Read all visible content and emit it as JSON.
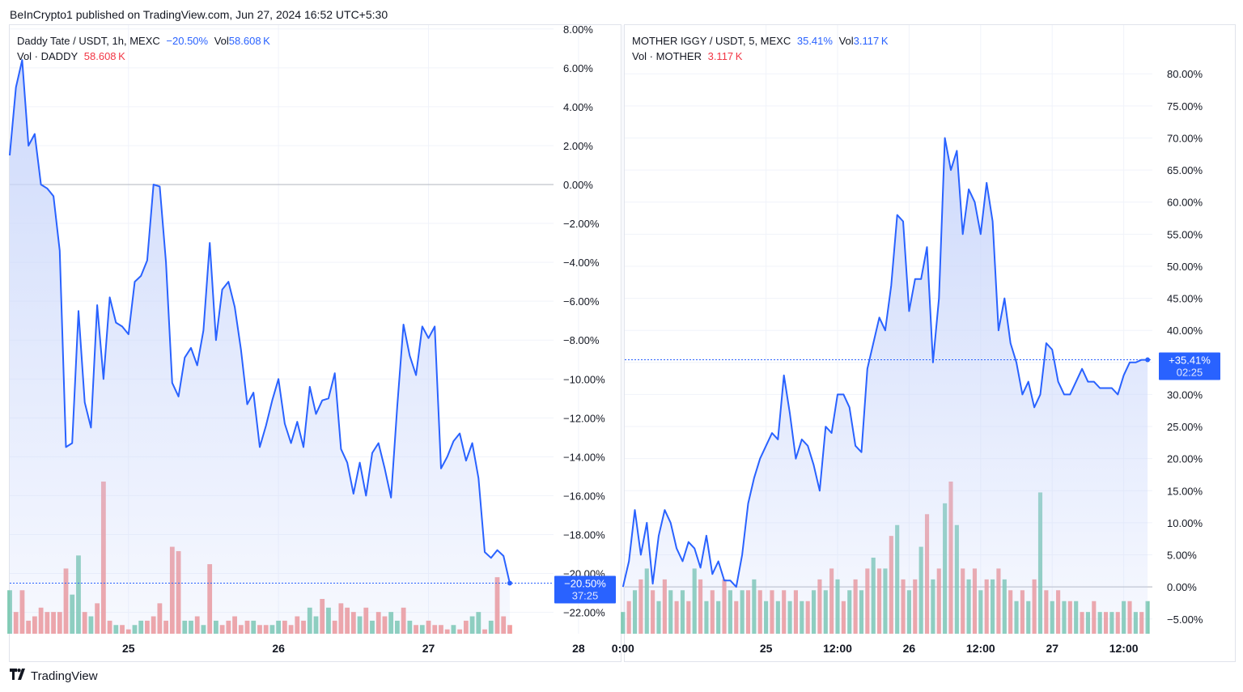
{
  "header": {
    "published": "BeInCrypto1 published on TradingView.com, Jun 27, 2024 16:52 UTC+5:30"
  },
  "footer": {
    "logo_icon": "tradingview-logo-icon",
    "brand": "TradingView"
  },
  "colors": {
    "line": "#2962ff",
    "area_top": "#c9d6fb",
    "up_vol": "#6cc3a8",
    "down_vol": "#f08b8b",
    "badge": "#2962ff",
    "grid": "#f0f3fa",
    "zero": "#b2b5be"
  },
  "left": {
    "symbol": "Daddy Tate / USDT, 1h, MEXC",
    "change": "−20.50%",
    "vol_label": "Vol",
    "vol_value": "58.608 K",
    "vol_series_label": "Vol · DADDY",
    "vol_series_value": "58.608 K",
    "badge_value": "−20.50%",
    "badge_timer": "37:25"
  },
  "right": {
    "symbol": "MOTHER IGGY / USDT, 5, MEXC",
    "change": "35.41%",
    "vol_label": "Vol",
    "vol_value": "3.117 K",
    "vol_series_label": "Vol · MOTHER",
    "vol_series_value": "3.117 K",
    "badge_value": "+35.41%",
    "badge_timer": "02:25"
  },
  "chart_data": [
    {
      "type": "area",
      "title": "Daddy Tate / USDT, 1h, MEXC",
      "y_unit": "%",
      "y_ticks": [
        "8.00%",
        "6.00%",
        "4.00%",
        "2.00%",
        "0.00%",
        "−2.00%",
        "−4.00%",
        "−6.00%",
        "−8.00%",
        "−10.00%",
        "−12.00%",
        "−14.00%",
        "−16.00%",
        "−18.00%",
        "−20.00%",
        "−22.00%"
      ],
      "y_tick_values": [
        8,
        6,
        4,
        2,
        0,
        -2,
        -4,
        -6,
        -8,
        -10,
        -12,
        -14,
        -16,
        -18,
        -20,
        -22
      ],
      "ylim": [
        -23.1,
        8.2
      ],
      "x_ticks": [
        "25",
        "26",
        "27",
        "28"
      ],
      "x_tick_values": [
        16,
        40,
        64,
        88
      ],
      "xlim": [
        -3,
        84
      ],
      "series": [
        {
          "x": [
            -3,
            -2,
            -1,
            0,
            1,
            2,
            3,
            4,
            5,
            6,
            7,
            8,
            9,
            10,
            11,
            12,
            13,
            14,
            15,
            16,
            17,
            18,
            19,
            20,
            21,
            22,
            23,
            24,
            25,
            26,
            27,
            28,
            29,
            30,
            31,
            32,
            33,
            34,
            35,
            36,
            37,
            38,
            39,
            40,
            41,
            42,
            43,
            44,
            45,
            46,
            47,
            48,
            49,
            50,
            51,
            52,
            53,
            54,
            55,
            56,
            57,
            58,
            59,
            60,
            61,
            62,
            63,
            64,
            65,
            66,
            67,
            68,
            69,
            70,
            71,
            72,
            73,
            74,
            75,
            76,
            77
          ],
          "y": [
            1.5,
            5,
            6.4,
            2,
            2.6,
            0,
            -0.2,
            -0.6,
            -3.4,
            -13.5,
            -13.3,
            -6.5,
            -11.2,
            -12.5,
            -6.2,
            -10,
            -5.8,
            -7.1,
            -7.3,
            -7.7,
            -5,
            -4.7,
            -3.9,
            0,
            -0.1,
            -4,
            -10.2,
            -10.9,
            -8.9,
            -8.4,
            -9.3,
            -7.5,
            -3,
            -8,
            -5.4,
            -5,
            -6.3,
            -8.5,
            -11.3,
            -10.7,
            -13.5,
            -12.4,
            -11.1,
            -10,
            -12.3,
            -13.3,
            -12.2,
            -13.5,
            -10.4,
            -11.8,
            -11.1,
            -11,
            -9.7,
            -13.6,
            -14.3,
            -15.9,
            -14.3,
            -16,
            -13.8,
            -13.3,
            -14.6,
            -16.1,
            -11.4,
            -7.2,
            -8.8,
            -9.8,
            -7.3,
            -7.9,
            -7.3,
            -14.6,
            -14,
            -13.2,
            -12.8,
            -14.2,
            -13.3,
            -15.1,
            -18.9,
            -19.2,
            -18.8,
            -19.1,
            -20.5
          ],
          "volume": [
            1.0,
            0.5,
            1.0,
            0.3,
            0.4,
            0.6,
            0.5,
            0.5,
            0.5,
            1.5,
            0.9,
            1.8,
            0.5,
            0.4,
            0.7,
            3.5,
            0.3,
            0.2,
            0.2,
            0.1,
            0.2,
            0.3,
            0.3,
            0.4,
            0.7,
            0.3,
            2.0,
            1.9,
            0.3,
            0.3,
            0.4,
            0.2,
            1.6,
            0.3,
            0.2,
            0.3,
            0.4,
            0.2,
            0.3,
            0.3,
            0.2,
            0.2,
            0.2,
            0.3,
            0.3,
            0.2,
            0.4,
            0.3,
            0.6,
            0.4,
            0.8,
            0.6,
            0.3,
            0.7,
            0.6,
            0.5,
            0.4,
            0.6,
            0.3,
            0.5,
            0.4,
            0.5,
            0.3,
            0.6,
            0.3,
            0.2,
            0.2,
            0.3,
            0.2,
            0.2,
            0.1,
            0.2,
            0.1,
            0.3,
            0.4,
            0.5,
            0.1,
            0.3,
            1.3,
            0.4,
            0.2
          ],
          "volume_up": [
            true,
            false,
            false,
            false,
            false,
            false,
            false,
            false,
            false,
            false,
            true,
            true,
            false,
            true,
            false,
            false,
            false,
            true,
            false,
            false,
            true,
            true,
            false,
            false,
            false,
            false,
            false,
            false,
            true,
            true,
            false,
            true,
            false,
            true,
            false,
            false,
            false,
            false,
            false,
            true,
            false,
            false,
            true,
            true,
            false,
            false,
            false,
            false,
            true,
            true,
            false,
            true,
            false,
            false,
            false,
            false,
            true,
            false,
            true,
            false,
            false,
            true,
            true,
            false,
            true,
            false,
            true,
            false,
            false,
            false,
            false,
            true,
            false,
            false,
            true,
            true,
            false,
            true,
            false,
            false,
            false
          ]
        }
      ],
      "last_value": -20.5
    },
    {
      "type": "area",
      "title": "MOTHER IGGY / USDT, 5, MEXC",
      "y_unit": "%",
      "y_ticks": [
        "80.00%",
        "75.00%",
        "70.00%",
        "65.00%",
        "60.00%",
        "55.00%",
        "50.00%",
        "45.00%",
        "40.00%",
        "35.00%",
        "30.00%",
        "25.00%",
        "20.00%",
        "15.00%",
        "10.00%",
        "5.00%",
        "0.00%",
        "−5.00%"
      ],
      "y_tick_values": [
        80,
        75,
        70,
        65,
        60,
        55,
        50,
        45,
        40,
        35,
        30,
        25,
        20,
        15,
        10,
        5,
        0,
        -5
      ],
      "ylim": [
        -7.3,
        87.6
      ],
      "x_ticks": [
        "0:00",
        "25",
        "12:00",
        "26",
        "12:00",
        "27",
        "12:00"
      ],
      "x_tick_values": [
        0,
        24,
        36,
        48,
        60,
        72,
        84
      ],
      "xlim": [
        0.3,
        88.8
      ],
      "series": [
        {
          "x": [
            0,
            1,
            2,
            3,
            4,
            5,
            6,
            7,
            8,
            9,
            10,
            11,
            12,
            13,
            14,
            15,
            16,
            17,
            18,
            19,
            20,
            21,
            22,
            23,
            24,
            25,
            26,
            27,
            28,
            29,
            30,
            31,
            32,
            33,
            34,
            35,
            36,
            37,
            38,
            39,
            40,
            41,
            42,
            43,
            44,
            45,
            46,
            47,
            48,
            49,
            50,
            51,
            52,
            53,
            54,
            55,
            56,
            57,
            58,
            59,
            60,
            61,
            62,
            63,
            64,
            65,
            66,
            67,
            68,
            69,
            70,
            71,
            72,
            73,
            74,
            75,
            76,
            77,
            78,
            79,
            80,
            81,
            82,
            83,
            84,
            85,
            86,
            87,
            88
          ],
          "y": [
            0,
            4,
            12,
            5,
            10,
            0.5,
            8,
            12,
            10,
            6,
            4,
            7,
            6,
            3,
            8,
            2,
            4,
            1,
            1,
            0,
            5,
            13,
            17,
            20,
            22,
            24,
            23,
            33,
            27,
            20,
            23,
            22,
            19,
            15,
            25,
            24,
            30,
            30,
            28,
            22,
            21,
            34,
            38,
            42,
            40,
            47,
            58,
            57,
            43,
            48,
            48,
            53,
            35,
            45,
            70,
            65,
            68,
            55,
            62,
            60,
            55,
            63,
            57,
            40,
            45,
            38,
            35,
            30,
            32,
            28,
            30,
            38,
            37,
            32,
            30,
            30,
            32,
            34,
            32,
            32,
            31,
            31,
            31,
            30,
            33,
            35,
            35,
            35.4,
            35.4
          ],
          "volume": [
            0.2,
            0.3,
            0.4,
            0.5,
            0.6,
            0.4,
            0.3,
            0.5,
            0.4,
            0.3,
            0.4,
            0.3,
            0.6,
            0.5,
            0.3,
            0.4,
            0.3,
            0.5,
            0.4,
            0.3,
            0.4,
            0.4,
            0.5,
            0.4,
            0.3,
            0.4,
            0.3,
            0.4,
            0.3,
            0.4,
            0.3,
            0.3,
            0.4,
            0.5,
            0.4,
            0.6,
            0.5,
            0.3,
            0.4,
            0.5,
            0.4,
            0.6,
            0.7,
            0.6,
            0.6,
            0.9,
            1.0,
            0.5,
            0.4,
            0.5,
            0.8,
            1.1,
            0.5,
            0.6,
            1.2,
            1.4,
            1.0,
            0.6,
            0.5,
            0.6,
            0.4,
            0.5,
            0.5,
            0.6,
            0.5,
            0.4,
            0.3,
            0.4,
            0.3,
            0.5,
            1.3,
            0.4,
            0.3,
            0.4,
            0.3,
            0.3,
            0.3,
            0.2,
            0.2,
            0.3,
            0.2,
            0.2,
            0.2,
            0.2,
            0.3,
            0.3,
            0.2,
            0.2,
            0.3
          ],
          "volume_up": [
            true,
            false,
            true,
            false,
            true,
            false,
            true,
            false,
            true,
            false,
            true,
            false,
            true,
            false,
            true,
            false,
            true,
            false,
            true,
            false,
            true,
            false,
            true,
            false,
            true,
            false,
            true,
            false,
            true,
            false,
            true,
            false,
            true,
            false,
            true,
            false,
            true,
            false,
            true,
            false,
            true,
            false,
            true,
            false,
            true,
            false,
            true,
            false,
            true,
            false,
            true,
            false,
            true,
            false,
            true,
            false,
            true,
            false,
            true,
            false,
            true,
            false,
            true,
            false,
            true,
            false,
            true,
            false,
            true,
            false,
            true,
            false,
            true,
            false,
            true,
            false,
            true,
            false,
            true,
            false,
            true,
            false,
            true,
            false,
            true,
            false,
            true,
            false,
            true
          ]
        }
      ],
      "last_value": 35.41
    }
  ]
}
